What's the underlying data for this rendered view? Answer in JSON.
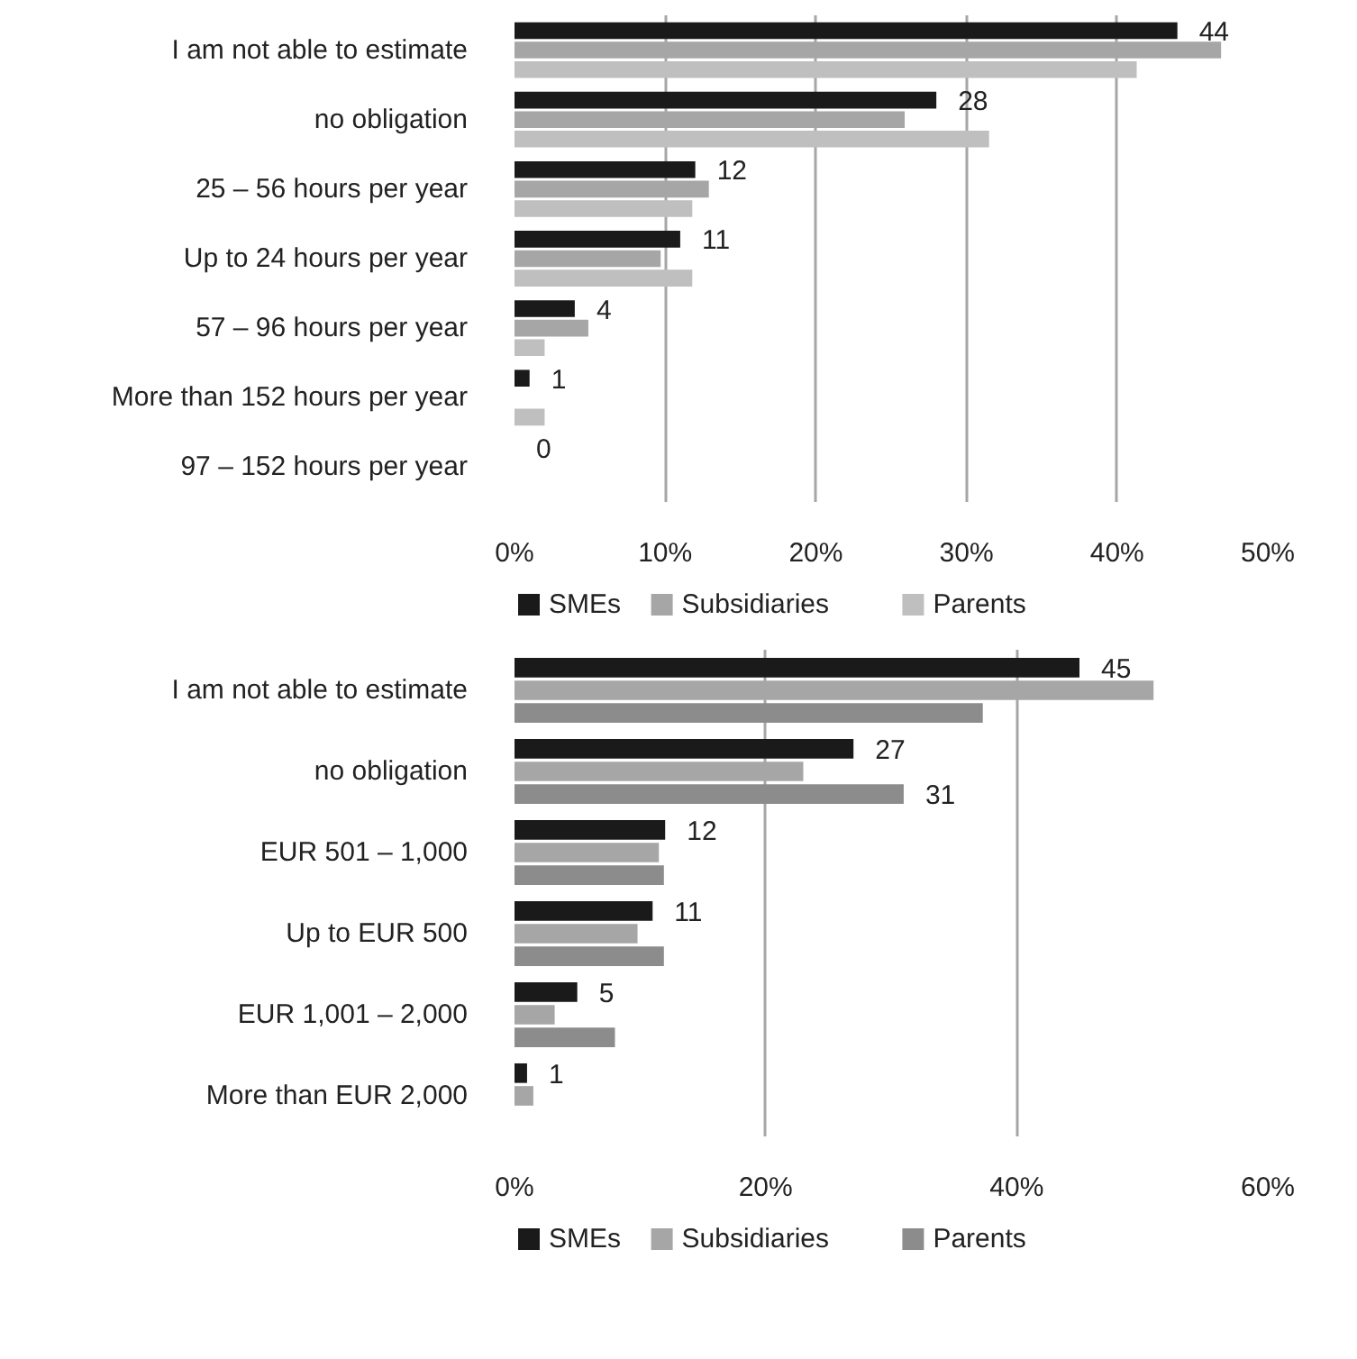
{
  "chart_data": [
    {
      "type": "bar",
      "orientation": "horizontal",
      "categories": [
        "I am not able to estimate",
        "no obligation",
        "25 – 56 hours per year",
        "Up to 24 hours per year",
        "57 – 96 hours per year",
        "More than 152 hours per year",
        "97 – 152 hours per year"
      ],
      "series": [
        {
          "name": "SMEs",
          "color": "#1a1a1a",
          "values": [
            44,
            28,
            12,
            11,
            4,
            1,
            0
          ],
          "value_labels": [
            "44",
            "28",
            "12",
            "11",
            "4",
            "1",
            "0"
          ]
        },
        {
          "name": "Subsidiaries",
          "color": "#a6a6a6",
          "values": [
            46.9,
            25.9,
            12.9,
            9.7,
            4.9,
            0,
            0
          ]
        },
        {
          "name": "Parents",
          "color": "#bfbfbf",
          "values": [
            41.3,
            31.5,
            11.8,
            11.8,
            2.0,
            2.0,
            0
          ]
        }
      ],
      "xlim": [
        0,
        50
      ],
      "xticks": [
        {
          "value": 0,
          "label": "0%"
        },
        {
          "value": 10,
          "label": "10%"
        },
        {
          "value": 20,
          "label": "20%"
        },
        {
          "value": 30,
          "label": "30%"
        },
        {
          "value": 40,
          "label": "40%"
        },
        {
          "value": 50,
          "label": "50%"
        }
      ],
      "grid": "x",
      "legend": "bottom"
    },
    {
      "type": "bar",
      "orientation": "horizontal",
      "categories": [
        "I am not able to estimate",
        "no obligation",
        "EUR 501 – 1,000",
        "Up to EUR 500",
        "EUR 1,001 – 2,000",
        "More than EUR 2,000"
      ],
      "series": [
        {
          "name": "SMEs",
          "color": "#1a1a1a",
          "values": [
            45,
            27,
            12,
            11,
            5,
            1
          ],
          "value_labels": [
            "45",
            "27",
            "12",
            "11",
            "5",
            "1"
          ]
        },
        {
          "name": "Subsidiaries",
          "color": "#a6a6a6",
          "values": [
            50.9,
            23.0,
            11.5,
            9.8,
            3.2,
            1.5
          ]
        },
        {
          "name": "Parents",
          "color": "#8c8c8c",
          "values": [
            37.3,
            31,
            11.9,
            11.9,
            8.0,
            0
          ],
          "value_labels": [
            null,
            "31",
            null,
            null,
            null,
            null
          ]
        }
      ],
      "xlim": [
        0,
        60
      ],
      "xticks": [
        {
          "value": 0,
          "label": "0%"
        },
        {
          "value": 20,
          "label": "20%"
        },
        {
          "value": 40,
          "label": "40%"
        },
        {
          "value": 60,
          "label": "60%"
        }
      ],
      "grid": "x",
      "legend": "bottom"
    }
  ]
}
